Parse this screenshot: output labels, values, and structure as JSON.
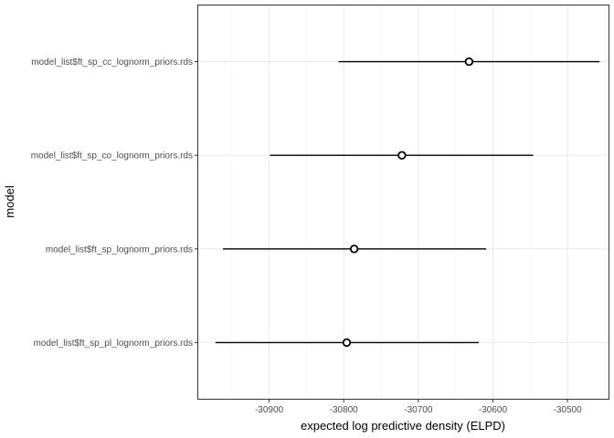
{
  "chart_data": {
    "type": "scatter",
    "title": "",
    "xlabel": "expected log predictive density (ELPD)",
    "ylabel": "model",
    "xlim": [
      -30995,
      -30445
    ],
    "x_ticks": [
      -30900,
      -30800,
      -30700,
      -30600,
      -30500
    ],
    "x_tick_labels": [
      "-30900",
      "-30800",
      "-30700",
      "-30600",
      "-30500"
    ],
    "grid": true,
    "legend": "none",
    "categories": [
      "model_list$ft_sp_cc_lognorm_priors.rds",
      "model_list$ft_sp_co_lognorm_priors.rds",
      "model_list$ft_sp_lognorm_priors.rds",
      "model_list$ft_sp_pl_lognorm_priors.rds"
    ],
    "points": [
      {
        "model": "model_list$ft_sp_cc_lognorm_priors.rds",
        "elpd": -30632,
        "lower": -30807,
        "upper": -30457
      },
      {
        "model": "model_list$ft_sp_co_lognorm_priors.rds",
        "elpd": -30722,
        "lower": -30899,
        "upper": -30546
      },
      {
        "model": "model_list$ft_sp_lognorm_priors.rds",
        "elpd": -30786,
        "lower": -30962,
        "upper": -30609
      },
      {
        "model": "model_list$ft_sp_pl_lognorm_priors.rds",
        "elpd": -30796,
        "lower": -30972,
        "upper": -30619
      }
    ],
    "colors": {
      "panel_border": "#333333",
      "grid_major": "#ebebeb",
      "grid_minor": "#f5f5f5",
      "line": "#000000",
      "point_fill": "#ffffff",
      "tick_text": "#4d4d4d"
    }
  }
}
